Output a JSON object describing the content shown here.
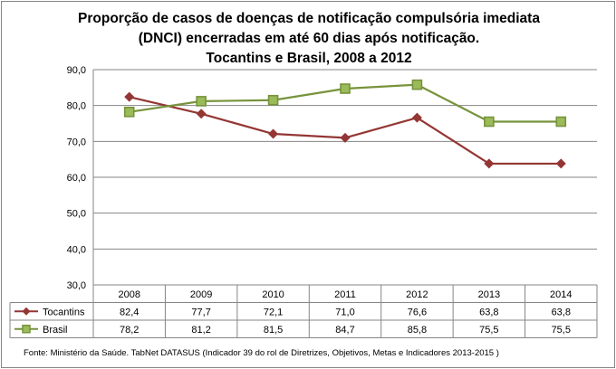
{
  "chart_data": {
    "type": "line",
    "title_lines": [
      "Proporção de casos de doenças de notificação compulsória imediata",
      "(DNCI) encerradas em até 60 dias após notificação.",
      "Tocantins e Brasil, 2008 a 2012"
    ],
    "categories": [
      "2008",
      "2009",
      "2010",
      "2011",
      "2012",
      "2013",
      "2014"
    ],
    "ylim": [
      30,
      90
    ],
    "yticks": [
      "30,0",
      "40,0",
      "50,0",
      "60,0",
      "70,0",
      "80,0",
      "90,0"
    ],
    "ytick_values": [
      30,
      40,
      50,
      60,
      70,
      80,
      90
    ],
    "grid": true,
    "legend": "data-table",
    "series": [
      {
        "name": "Tocantins",
        "color": "#943634",
        "marker": "diamond",
        "values": [
          82.4,
          77.7,
          72.1,
          71.0,
          76.6,
          63.8,
          63.8
        ],
        "labels": [
          "82,4",
          "77,7",
          "72,1",
          "71,0",
          "76,6",
          "63,8",
          "63,8"
        ]
      },
      {
        "name": "Brasil",
        "color": "#77933C",
        "fill": "#9BBB59",
        "marker": "square",
        "values": [
          78.2,
          81.2,
          81.5,
          84.7,
          85.8,
          75.5,
          75.5
        ],
        "labels": [
          "78,2",
          "81,2",
          "81,5",
          "84,7",
          "85,8",
          "75,5",
          "75,5"
        ]
      }
    ]
  },
  "footer": {
    "source": "Fonte: Ministério da Saúde. TabNet DATASUS (Indicador 39 do rol de Diretrizes, Objetivos, Metas e Indicadores 2013-2015 )"
  }
}
